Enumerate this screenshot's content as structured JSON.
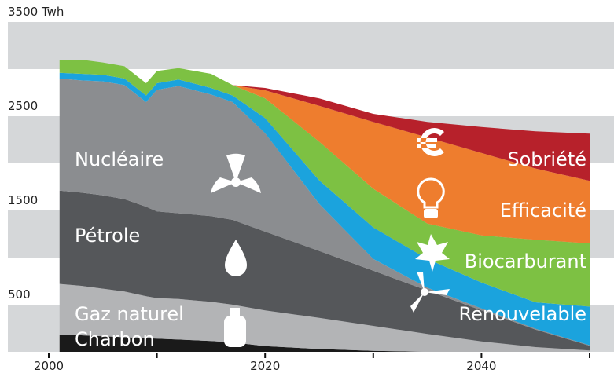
{
  "chart_data": {
    "type": "stacked_area",
    "x": [
      2001,
      2003,
      2005,
      2007,
      2009,
      2010,
      2012,
      2015,
      2017,
      2020,
      2025,
      2030,
      2035,
      2040,
      2045,
      2050
    ],
    "xlim": [
      2000,
      2050
    ],
    "xticks": [
      2000,
      2020,
      2040
    ],
    "xminor": [
      2010,
      2030,
      2050
    ],
    "ylim": [
      0,
      3500
    ],
    "yticks": [
      500,
      1500,
      2500,
      {
        "value": 3500,
        "label": "3500 Twh"
      }
    ],
    "grid": "bands",
    "series": [
      {
        "name": "Charbon",
        "color": "#1a1a1a",
        "values": [
          180,
          175,
          165,
          155,
          145,
          140,
          130,
          115,
          100,
          60,
          30,
          10,
          0,
          0,
          0,
          0
        ]
      },
      {
        "name": "Gaz naturel",
        "color": "#b3b4b6",
        "values": [
          540,
          525,
          505,
          485,
          445,
          430,
          430,
          415,
          400,
          380,
          330,
          265,
          190,
          110,
          50,
          15
        ]
      },
      {
        "name": "Pétrole",
        "color": "#55575a",
        "values": [
          990,
          990,
          990,
          980,
          950,
          920,
          910,
          910,
          900,
          835,
          710,
          585,
          460,
          330,
          185,
          50
        ]
      },
      {
        "name": "Nucléaire",
        "color": "#8b8d90",
        "values": [
          1190,
          1190,
          1210,
          1210,
          1110,
          1290,
          1350,
          1290,
          1250,
          1045,
          500,
          125,
          30,
          20,
          10,
          5
        ]
      },
      {
        "name": "Renouvelable",
        "color": "#1ba3dd",
        "values": [
          60,
          70,
          70,
          70,
          70,
          70,
          70,
          70,
          70,
          160,
          250,
          335,
          305,
          275,
          280,
          410
        ]
      },
      {
        "name": "Biocarburant",
        "color": "#7dc143",
        "values": [
          140,
          150,
          130,
          130,
          130,
          130,
          120,
          150,
          110,
          210,
          410,
          410,
          375,
          500,
          665,
          670
        ]
      },
      {
        "name": "Efficacité",
        "color": "#ee7d2e",
        "values": [
          0,
          0,
          0,
          0,
          0,
          0,
          0,
          0,
          0,
          85,
          380,
          710,
          915,
          875,
          755,
          665
        ]
      },
      {
        "name": "Sobriété",
        "color": "#b7212b",
        "values": [
          0,
          0,
          0,
          0,
          0,
          0,
          0,
          0,
          0,
          25,
          80,
          85,
          165,
          275,
          395,
          500
        ]
      }
    ]
  }
}
